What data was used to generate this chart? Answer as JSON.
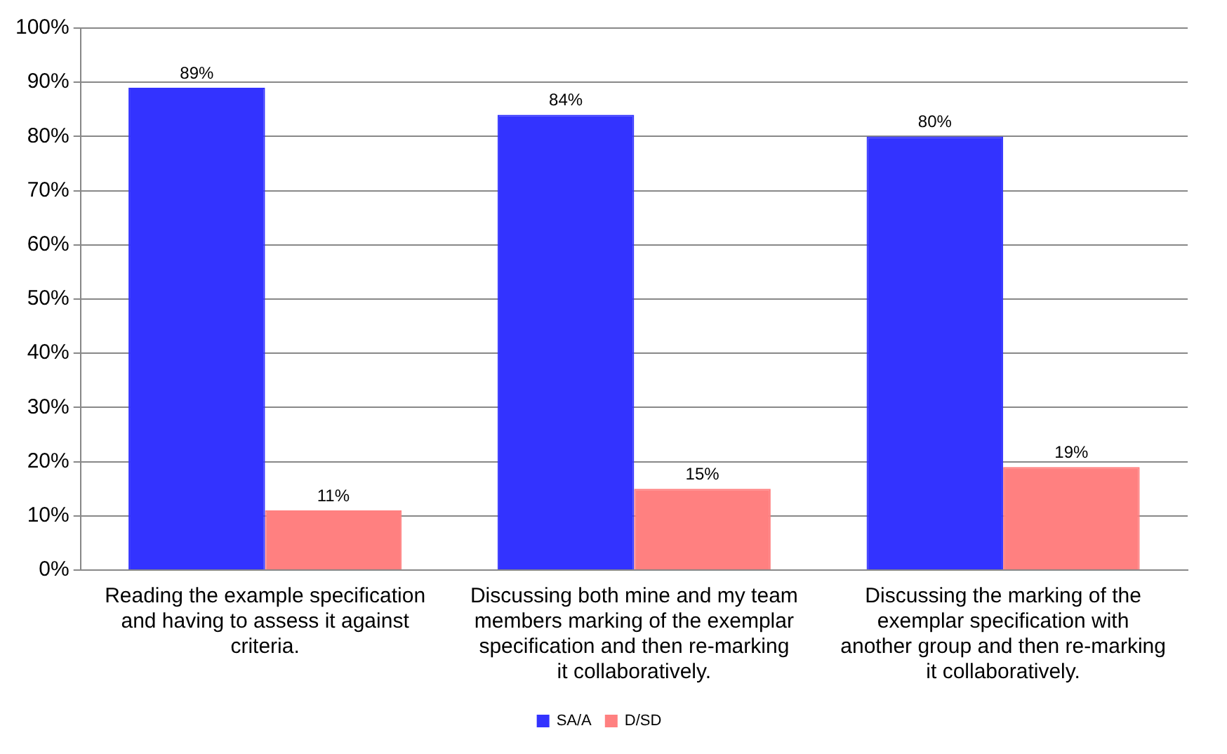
{
  "chart_data": {
    "type": "bar",
    "categories": [
      "Reading the example specification and having to assess it against criteria.",
      "Discussing both mine and my team members marking of the exemplar specification and then re-marking it collaboratively.",
      "Discussing the marking of the exemplar specification with another group and then re-marking it collaboratively."
    ],
    "series": [
      {
        "name": "SA/A",
        "color": "#3333ff",
        "values": [
          89,
          84,
          80
        ],
        "value_labels": [
          "89%",
          "84%",
          "80%"
        ]
      },
      {
        "name": "D/SD",
        "color": "#ff8080",
        "values": [
          11,
          15,
          19
        ],
        "value_labels": [
          "11%",
          "15%",
          "19%"
        ]
      }
    ],
    "ylim": [
      0,
      100
    ],
    "yticks": [
      {
        "value": 0,
        "label": "0%"
      },
      {
        "value": 10,
        "label": "10%"
      },
      {
        "value": 20,
        "label": "20%"
      },
      {
        "value": 30,
        "label": "30%"
      },
      {
        "value": 40,
        "label": "40%"
      },
      {
        "value": 50,
        "label": "50%"
      },
      {
        "value": 60,
        "label": "60%"
      },
      {
        "value": 70,
        "label": "70%"
      },
      {
        "value": 80,
        "label": "80%"
      },
      {
        "value": 90,
        "label": "90%"
      },
      {
        "value": 100,
        "label": "100%"
      }
    ],
    "grid": "y",
    "legend": "bottom"
  }
}
